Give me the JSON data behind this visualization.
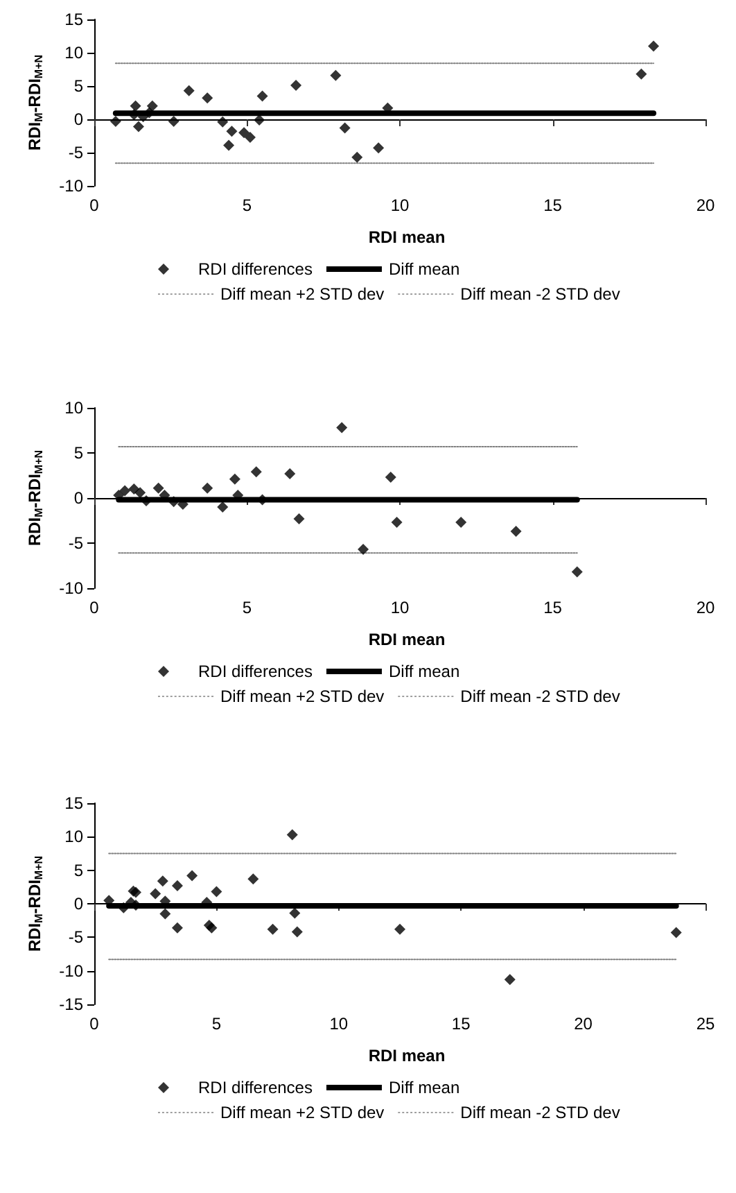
{
  "chart_data": [
    {
      "type": "scatter",
      "xlabel": "RDI mean",
      "ylabel": "RDI$_{M}$-RDI$_{M+N}$",
      "xlim": [
        0,
        20
      ],
      "xticks": [
        0,
        5,
        10,
        15,
        20
      ],
      "ylim": [
        -10,
        15
      ],
      "yticks": [
        -10,
        -5,
        0,
        5,
        10,
        15
      ],
      "grid": false,
      "legend": "bottom",
      "series": [
        {
          "name": "RDI differences",
          "color": "#000000",
          "marker": "diamond",
          "x": [
            0.7,
            1.35,
            1.45,
            1.3,
            1.6,
            1.8,
            1.9,
            2.6,
            3.1,
            3.7,
            4.2,
            4.4,
            4.5,
            4.9,
            5.1,
            5.4,
            5.5,
            6.6,
            7.9,
            8.2,
            8.6,
            9.3,
            9.6,
            17.9,
            18.3
          ],
          "values": [
            -0.3,
            2.0,
            -1.1,
            0.7,
            0.4,
            1.0,
            2.0,
            -0.3,
            4.3,
            3.2,
            -0.4,
            -3.9,
            -1.8,
            -2.0,
            -2.7,
            -0.1,
            3.5,
            5.1,
            6.6,
            -1.3,
            -5.7,
            -4.3,
            1.7,
            6.8,
            11.0
          ]
        },
        {
          "name": "Diff mean",
          "type": "line",
          "color": "#000000",
          "marker": "none",
          "line_style": "solid",
          "x": [
            0.7,
            18.3
          ],
          "values": [
            0.9,
            0.9
          ]
        },
        {
          "name": "Diff mean +2 STD dev",
          "type": "line",
          "color": "#808080",
          "marker": "none",
          "line_style": "dotted",
          "x": [
            0.7,
            18.3
          ],
          "values": [
            8.4,
            8.4
          ]
        },
        {
          "name": "Diff mean -2 STD dev",
          "type": "line",
          "color": "#808080",
          "marker": "none",
          "line_style": "dotted",
          "x": [
            0.7,
            18.3
          ],
          "values": [
            -6.6,
            -6.6
          ]
        }
      ]
    },
    {
      "type": "scatter",
      "xlabel": "RDI mean",
      "ylabel": "RDI$_{M}$-RDI$_{M+N}$",
      "xlim": [
        0,
        20
      ],
      "xticks": [
        0,
        5,
        10,
        15,
        20
      ],
      "ylim": [
        -10,
        10
      ],
      "yticks": [
        -10,
        -5,
        0,
        5,
        10
      ],
      "grid": false,
      "legend": "bottom",
      "series": [
        {
          "name": "RDI differences",
          "color": "#000000",
          "marker": "diamond",
          "x": [
            0.8,
            1.0,
            1.3,
            1.5,
            1.7,
            2.1,
            2.3,
            2.6,
            2.9,
            3.7,
            4.2,
            4.6,
            4.7,
            5.3,
            5.5,
            6.4,
            6.7,
            8.1,
            8.8,
            9.7,
            9.9,
            12.0,
            13.8,
            15.8
          ],
          "values": [
            0.3,
            0.8,
            1.0,
            0.6,
            -0.3,
            1.1,
            0.3,
            -0.4,
            -0.7,
            1.1,
            -1.0,
            2.1,
            0.3,
            2.9,
            -0.2,
            2.7,
            -2.3,
            7.8,
            -5.7,
            2.3,
            -2.7,
            -2.7,
            -3.7,
            -8.2
          ]
        },
        {
          "name": "Diff mean",
          "type": "line",
          "color": "#000000",
          "marker": "none",
          "line_style": "solid",
          "x": [
            0.8,
            15.8
          ],
          "values": [
            -0.2,
            -0.2
          ]
        },
        {
          "name": "Diff mean +2 STD dev",
          "type": "line",
          "color": "#808080",
          "marker": "none",
          "line_style": "dotted",
          "x": [
            0.8,
            15.8
          ],
          "values": [
            5.7,
            5.7
          ]
        },
        {
          "name": "Diff mean -2 STD dev",
          "type": "line",
          "color": "#808080",
          "marker": "none",
          "line_style": "dotted",
          "x": [
            0.8,
            15.8
          ],
          "values": [
            -6.1,
            -6.1
          ]
        }
      ]
    },
    {
      "type": "scatter",
      "xlabel": "RDI mean",
      "ylabel": "RDI$_{M}$-RDI$_{M+N}$",
      "xlim": [
        0,
        25
      ],
      "xticks": [
        0,
        5,
        10,
        15,
        20,
        25
      ],
      "ylim": [
        -15,
        15
      ],
      "yticks": [
        -15,
        -10,
        -5,
        0,
        5,
        10,
        15
      ],
      "grid": false,
      "legend": "bottom",
      "series": [
        {
          "name": "RDI differences",
          "color": "#000000",
          "marker": "diamond",
          "x": [
            0.6,
            1.2,
            1.5,
            1.6,
            1.7,
            1.7,
            2.5,
            2.8,
            2.9,
            2.9,
            3.4,
            3.4,
            4.0,
            4.6,
            4.7,
            4.8,
            5.0,
            6.5,
            7.3,
            8.1,
            8.2,
            8.3,
            12.5,
            17.0,
            23.8
          ],
          "values": [
            0.5,
            -0.6,
            0.2,
            1.9,
            1.7,
            -0.2,
            1.5,
            3.4,
            0.4,
            -1.5,
            -3.6,
            2.7,
            4.2,
            0.2,
            -3.2,
            -3.6,
            1.8,
            3.7,
            -3.8,
            10.3,
            -1.4,
            -4.2,
            -3.8,
            -11.3,
            -4.3
          ]
        },
        {
          "name": "Diff mean",
          "type": "line",
          "color": "#000000",
          "marker": "none",
          "line_style": "solid",
          "x": [
            0.6,
            23.8
          ],
          "values": [
            -0.3,
            -0.3
          ]
        },
        {
          "name": "Diff mean +2 STD dev",
          "type": "line",
          "color": "#808080",
          "marker": "none",
          "line_style": "dotted",
          "x": [
            0.6,
            23.8
          ],
          "values": [
            7.5,
            7.5
          ]
        },
        {
          "name": "Diff mean -2 STD dev",
          "type": "line",
          "color": "#808080",
          "marker": "none",
          "line_style": "dotted",
          "x": [
            0.6,
            23.8
          ],
          "values": [
            -8.3,
            -8.3
          ]
        }
      ]
    }
  ]
}
